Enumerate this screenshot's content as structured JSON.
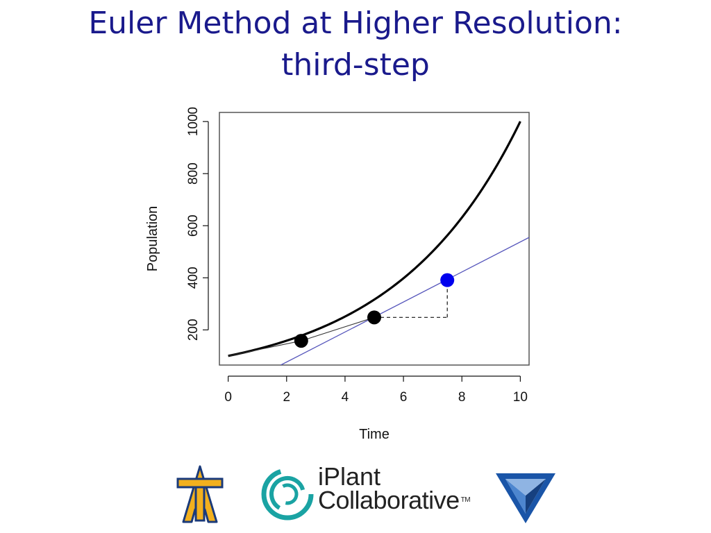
{
  "slide": {
    "title_line1": "Euler Method at Higher Resolution:",
    "title_line2": "third-step"
  },
  "chart_data": {
    "type": "line",
    "xlabel": "Time",
    "ylabel": "Population",
    "xlim": [
      -0.3,
      10.3
    ],
    "ylim": [
      65,
      1035
    ],
    "x_ticks": [
      0,
      2,
      4,
      6,
      8,
      10
    ],
    "y_ticks": [
      200,
      400,
      600,
      800,
      1000
    ],
    "grid": false,
    "exact_curve": {
      "type": "exponential",
      "x_start": 0,
      "x_end": 10,
      "y0": 100,
      "rate": 0.2303,
      "color": "#000000"
    },
    "euler_points": [
      {
        "x": 2.5,
        "y": 158,
        "color": "#000000"
      },
      {
        "x": 5,
        "y": 248,
        "color": "#000000"
      },
      {
        "x": 7.5,
        "y": 391,
        "color": "#0000ee"
      }
    ],
    "tangent_line": {
      "x_start": 1.8,
      "y_start": 65,
      "x_end": 10.3,
      "y_end": 555,
      "color": "#5555bb"
    },
    "euler_segments": [
      {
        "x1": 0,
        "y1": 100,
        "x2": 2.5,
        "y2": 158
      },
      {
        "x1": 2.5,
        "y1": 158,
        "x2": 5,
        "y2": 248
      }
    ],
    "step_guide": {
      "x1": 5,
      "y1": 248,
      "x2": 7.5,
      "y2": 391,
      "style": "dashed"
    }
  },
  "logos": {
    "aggie": {
      "icon": "aggie-at-logo-icon",
      "color": "#f2b01e",
      "outline": "#1a3a7a"
    },
    "iplant": {
      "icon": "iplant-swirl-icon",
      "line1": "iPlant",
      "line2": "Collaborative",
      "tm": "TM",
      "color": "#1aa3a3"
    },
    "triangle": {
      "icon": "triangle-logo-icon",
      "color": "#1a55a8"
    }
  }
}
